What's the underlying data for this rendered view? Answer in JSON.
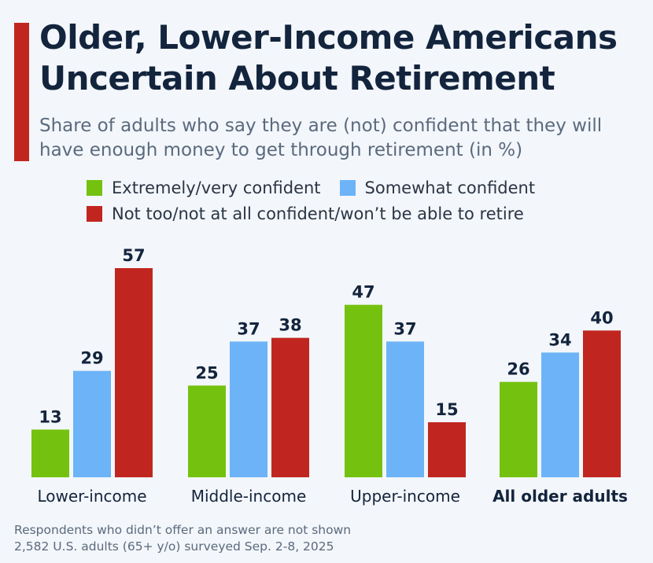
{
  "chart_data": {
    "type": "bar",
    "title": "Older, Lower-Income Americans Uncertain About Retirement",
    "subtitle": "Share of adults who say they are (not) confident that they will have enough money to get through retirement (in %)",
    "categories": [
      "Lower-income",
      "Middle-income",
      "Upper-income",
      "All older adults"
    ],
    "series": [
      {
        "name": "Extremely/very confident",
        "color": "#74c20f",
        "values": [
          13,
          25,
          47,
          26
        ]
      },
      {
        "name": "Somewhat confident",
        "color": "#6cb4f7",
        "values": [
          29,
          37,
          37,
          34
        ]
      },
      {
        "name": "Not too/not at all confident/won’t be able to retire",
        "color": "#c0261f",
        "values": [
          57,
          38,
          15,
          40
        ]
      }
    ],
    "ylim": [
      0,
      57
    ],
    "grid": false,
    "legend": "top-left",
    "data_labels": true,
    "notes": [
      "Respondents who didn’t offer an answer are not shown",
      "2,582 U.S. adults (65+ y/o) surveyed Sep. 2-8, 2025"
    ]
  }
}
